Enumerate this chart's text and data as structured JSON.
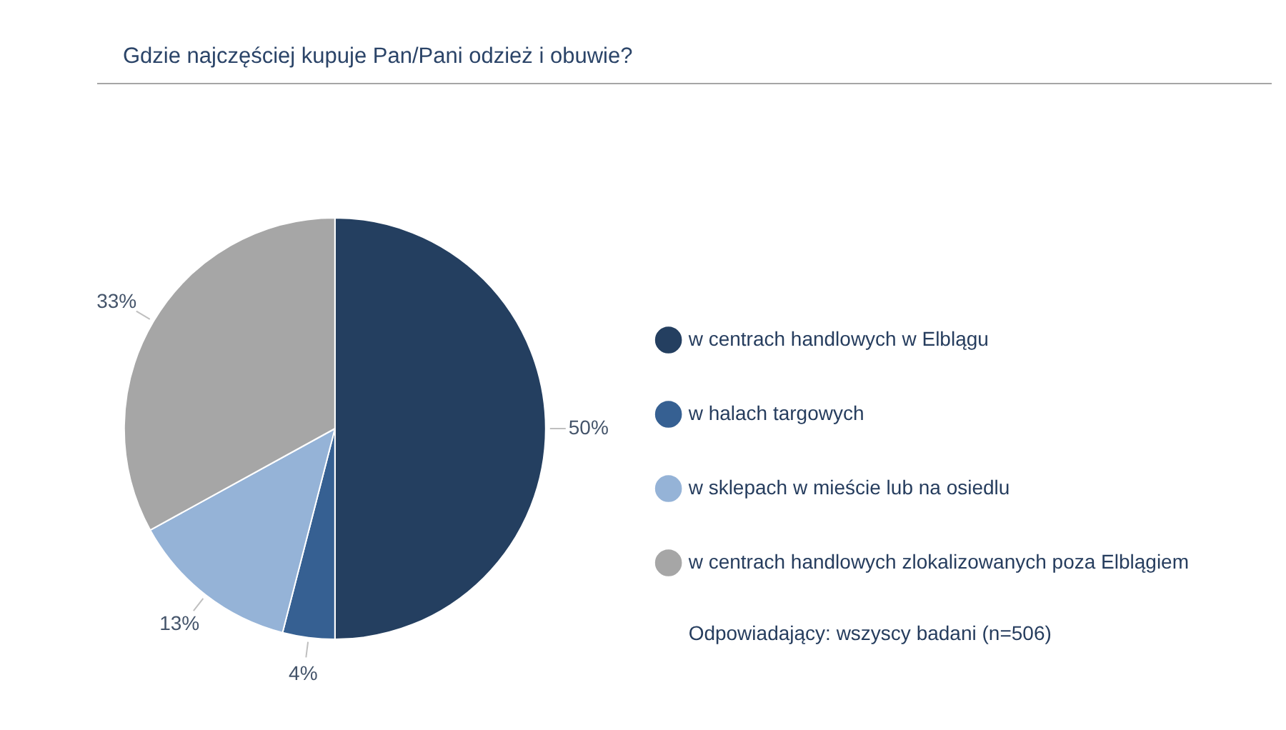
{
  "chart_data": {
    "type": "pie",
    "title": "Gdzie najczęściej kupuje Pan/Pani odzież i obuwie?",
    "categories": [
      "w centrach handlowych w Elblągu",
      "w halach targowych",
      "w sklepach w mieście lub na osiedlu",
      "w centrach handlowych zlokalizowanych poza Elblągiem"
    ],
    "values": [
      50,
      4,
      13,
      33
    ],
    "colors": [
      "#243f60",
      "#366092",
      "#95b3d7",
      "#a6a6a6"
    ],
    "value_labels": [
      "50%",
      "4%",
      "13%",
      "33%"
    ],
    "legend": "right",
    "annotations": [
      "Odpowiadający: wszyscy badani (n=506)"
    ]
  }
}
